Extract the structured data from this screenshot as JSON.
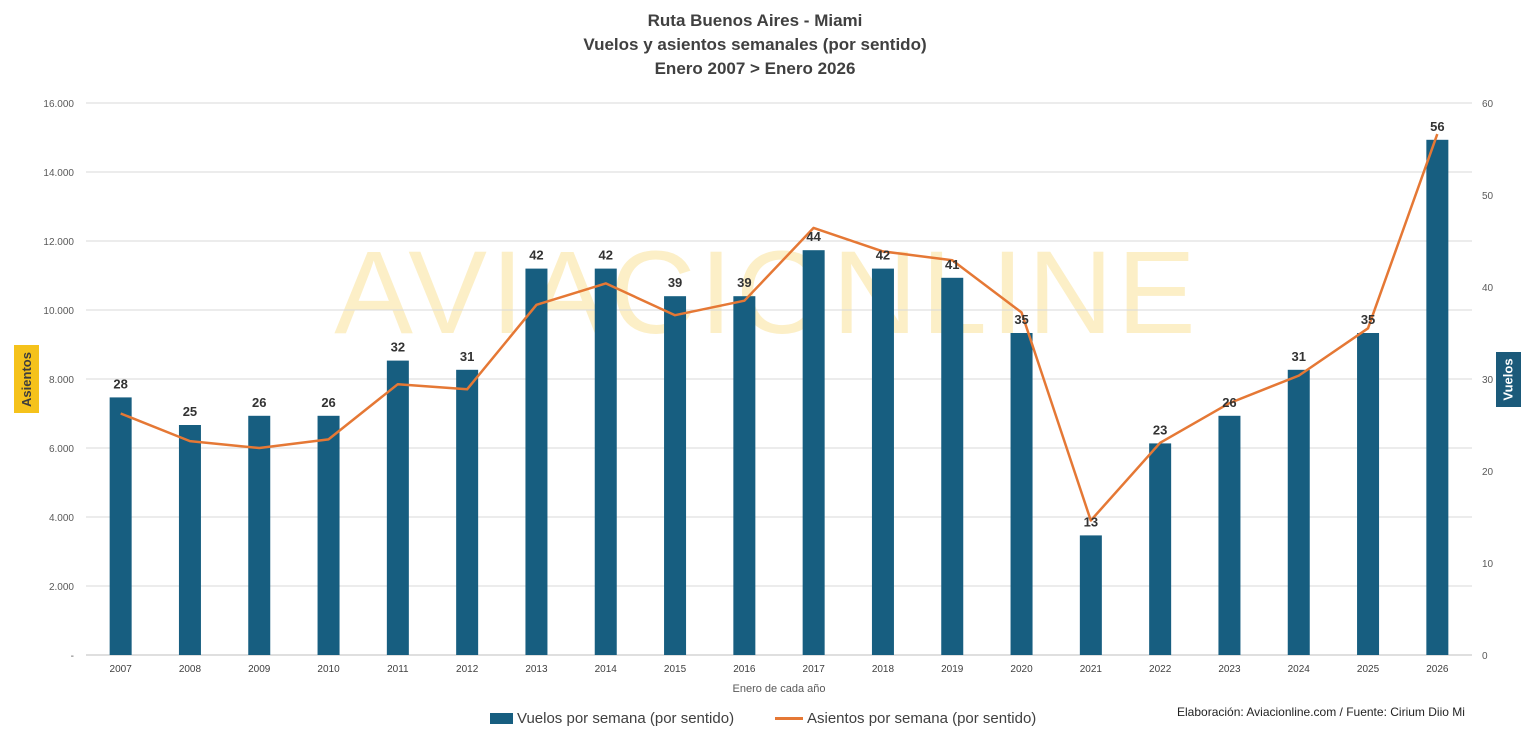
{
  "title": {
    "line1": "Ruta Buenos Aires - Miami",
    "line2": "Vuelos y asientos semanales (por sentido)",
    "line3": "Enero 2007 > Enero 2026"
  },
  "watermark": "AVIACIONLINE",
  "source": "Elaboración: Aviacionline.com / Fuente: Cirium Diio Mi",
  "legend": {
    "bars": "Vuelos por semana (por sentido)",
    "line": "Asientos por semana (por sentido)"
  },
  "colors": {
    "bars": "#175e80",
    "line": "#e57835",
    "left_axis_badge": "#f5c21b",
    "right_axis_badge": "#1b5a7a"
  },
  "chart_data": {
    "type": "bar+line",
    "xlabel": "Enero de cada año",
    "ylabel_left": "Asientos",
    "ylabel_right": "Vuelos",
    "ylim_left": [
      0,
      16000
    ],
    "ylim_right": [
      0,
      60
    ],
    "left_ticks": [
      "-",
      "2.000",
      "4.000",
      "6.000",
      "8.000",
      "10.000",
      "12.000",
      "14.000",
      "16.000"
    ],
    "right_ticks": [
      "0",
      "10",
      "20",
      "30",
      "40",
      "50",
      "60"
    ],
    "grid": true,
    "legend_position": "bottom",
    "categories": [
      "2007",
      "2008",
      "2009",
      "2010",
      "2011",
      "2012",
      "2013",
      "2014",
      "2015",
      "2016",
      "2017",
      "2018",
      "2019",
      "2020",
      "2021",
      "2022",
      "2023",
      "2024",
      "2025",
      "2026"
    ],
    "series": [
      {
        "name": "Vuelos por semana (por sentido)",
        "type": "bar",
        "axis": "right",
        "values": [
          28,
          25,
          26,
          26,
          32,
          31,
          42,
          42,
          39,
          39,
          44,
          42,
          41,
          35,
          13,
          23,
          26,
          31,
          35,
          56
        ]
      },
      {
        "name": "Asientos por semana (por sentido)",
        "type": "line",
        "axis": "left",
        "values": [
          7000,
          6200,
          6000,
          6250,
          7850,
          7700,
          10150,
          10770,
          9850,
          10270,
          12380,
          11700,
          11440,
          9930,
          3900,
          6150,
          7300,
          8100,
          9470,
          15100
        ]
      }
    ]
  }
}
